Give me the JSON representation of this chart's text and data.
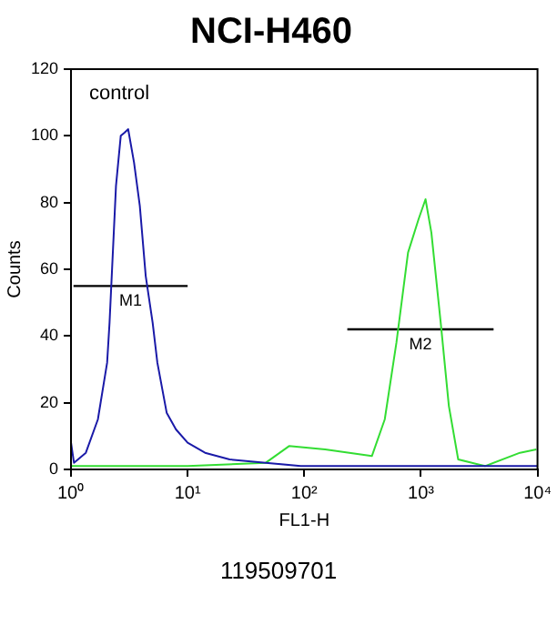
{
  "chart_data": {
    "type": "line",
    "title": "NCI-H460",
    "xlabel": "FL1-H",
    "ylabel": "Counts",
    "log": "x",
    "xlim": [
      1,
      10000
    ],
    "xticks": [
      {
        "value": 1,
        "label": "10⁰"
      },
      {
        "value": 10,
        "label": "10¹"
      },
      {
        "value": 100,
        "label": "10²"
      },
      {
        "value": 1000,
        "label": "10³"
      },
      {
        "value": 10000,
        "label": "10⁴"
      }
    ],
    "ylim": [
      0,
      120
    ],
    "yticks": [
      0,
      20,
      40,
      60,
      80,
      100,
      120
    ],
    "grid": false,
    "legend": false,
    "marker": "none",
    "line_style": "solid",
    "series": [
      {
        "color": "#1a1aa8",
        "x": [
          1,
          1.06,
          1.34,
          1.7,
          2.04,
          2.14,
          2.43,
          2.67,
          2.88,
          3.09,
          3.47,
          3.89,
          4.37,
          5.01,
          5.5,
          6.61,
          7.94,
          10,
          14.1,
          22.9,
          46.8,
          93.3,
          316,
          1000,
          10000
        ],
        "values": [
          8,
          2,
          5,
          15,
          32,
          44,
          85,
          100,
          101,
          102,
          92,
          79,
          58,
          44,
          32,
          17,
          12,
          8,
          5,
          3,
          2,
          1,
          1,
          1,
          1
        ]
      },
      {
        "color": "#33dd33",
        "x": [
          1,
          10,
          46.8,
          74.1,
          151,
          380,
          490,
          617,
          776,
          955,
          1096,
          1230,
          1479,
          1738,
          2089,
          3548,
          7079,
          9772
        ],
        "values": [
          1,
          1,
          2,
          7,
          6,
          4,
          15,
          38,
          65,
          75,
          81,
          71,
          44,
          19,
          3,
          1,
          5,
          6
        ]
      },
      {
        "name": "M1",
        "color": "#000000",
        "x": [
          1.05,
          10
        ],
        "values": [
          55,
          55
        ]
      },
      {
        "name": "M2",
        "color": "#000000",
        "x": [
          234,
          4200
        ],
        "values": [
          42,
          42
        ]
      }
    ],
    "annotations": [
      "control",
      "119509701"
    ]
  }
}
